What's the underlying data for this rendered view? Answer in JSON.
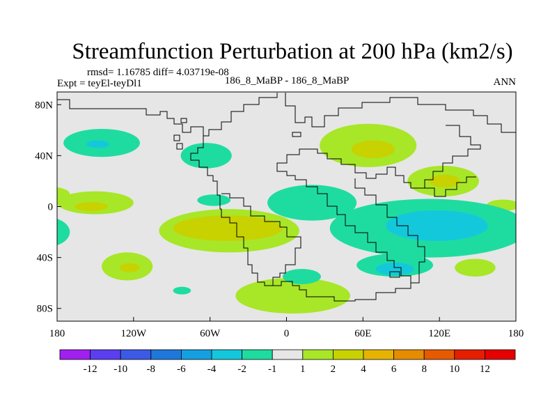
{
  "chart_data": {
    "type": "heatmap",
    "title": "Streamfunction Perturbation at 200 hPa (km2/s)",
    "stats_line": "rmsd= 1.16785 diff= 4.03719e-08",
    "left_label": "Expt = teyEl-teyDl1",
    "center_label": "186_8_MaBP - 186_8_MaBP",
    "right_label": "ANN",
    "x_axis": {
      "range": [
        -180,
        180
      ],
      "ticks": [
        {
          "value": -180,
          "label": "180"
        },
        {
          "value": -120,
          "label": "120W"
        },
        {
          "value": -60,
          "label": "60W"
        },
        {
          "value": 0,
          "label": "0"
        },
        {
          "value": 60,
          "label": "60E"
        },
        {
          "value": 120,
          "label": "120E"
        },
        {
          "value": 180,
          "label": "180"
        }
      ]
    },
    "y_axis": {
      "range": [
        -90,
        90
      ],
      "ticks": [
        {
          "value": 80,
          "label": "80N"
        },
        {
          "value": 40,
          "label": "40N"
        },
        {
          "value": 0,
          "label": "0"
        },
        {
          "value": -40,
          "label": "40S"
        },
        {
          "value": -80,
          "label": "80S"
        }
      ]
    },
    "colorbar": {
      "labels": [
        "-12",
        "-10",
        "-8",
        "-6",
        "-4",
        "-2",
        "-1",
        "1",
        "2",
        "4",
        "6",
        "8",
        "10",
        "12"
      ],
      "colors": [
        "#a020f0",
        "#5a3ef0",
        "#3c5ae6",
        "#1e78dc",
        "#14a0e0",
        "#14c8dc",
        "#1edca0",
        "#e6e6e6",
        "#a8e628",
        "#c8d200",
        "#e6b400",
        "#e68c00",
        "#e65a00",
        "#e61e00",
        "#e60000"
      ]
    },
    "features": [
      {
        "name": "pacific-nw-low-outer",
        "lon": -145,
        "lat": 50,
        "rlon": 30,
        "rlat": 11,
        "level": "-1"
      },
      {
        "name": "pacific-nw-low-inner",
        "lon": -148,
        "lat": 49,
        "rlon": 9,
        "rlat": 3,
        "level": "-2"
      },
      {
        "name": "north-america-low",
        "lon": -63,
        "lat": 40,
        "rlon": 20,
        "rlat": 10,
        "level": "-1"
      },
      {
        "name": "gulf-low",
        "lon": -57,
        "lat": 5,
        "rlon": 13,
        "rlat": 4.5,
        "level": "-1"
      },
      {
        "name": "tropical-pacific-high-outer",
        "lon": -150,
        "lat": 3,
        "rlon": 30,
        "rlat": 9,
        "level": "1"
      },
      {
        "name": "tropical-pacific-high-inner",
        "lon": -153,
        "lat": 0,
        "rlon": 13,
        "rlat": 3.5,
        "level": "2"
      },
      {
        "name": "north-atlantic-high-east",
        "lon": -190,
        "lat": 10,
        "rlon": 20,
        "rlat": 6,
        "level": "1"
      },
      {
        "name": "europe-high-outer",
        "lon": 64,
        "lat": 48,
        "rlon": 38,
        "rlat": 17,
        "level": "1"
      },
      {
        "name": "europe-high-inner",
        "lon": 68,
        "lat": 45,
        "rlon": 17,
        "rlat": 7,
        "level": "2"
      },
      {
        "name": "east-asia-high-outer",
        "lon": 123,
        "lat": 20,
        "rlon": 28,
        "rlat": 12,
        "level": "1"
      },
      {
        "name": "east-asia-high-inner",
        "lon": 124,
        "lat": 20,
        "rlon": 12,
        "rlat": 5,
        "level": "2"
      },
      {
        "name": "north-pacific-high",
        "lon": 170,
        "lat": 1,
        "rlon": 13,
        "rlat": 4.5,
        "level": "1"
      },
      {
        "name": "indian-ocean-low-outer",
        "lon": 112,
        "lat": -17,
        "rlon": 78,
        "rlat": 23,
        "level": "-1"
      },
      {
        "name": "indian-ocean-low-inner",
        "lon": 118,
        "lat": -15,
        "rlon": 40,
        "rlat": 12,
        "level": "-2"
      },
      {
        "name": "atlantic-low-band",
        "lon": 20,
        "lat": 3,
        "rlon": 35,
        "rlat": 14,
        "level": "-1"
      },
      {
        "name": "south-africa-low",
        "lon": 85,
        "lat": -46,
        "rlon": 30,
        "rlat": 9,
        "level": "-1"
      },
      {
        "name": "south-africa-low-inner",
        "lon": 85,
        "lat": -49,
        "rlon": 15,
        "rlat": 5,
        "level": "-2"
      },
      {
        "name": "south-pacific-high-outer",
        "lon": -45,
        "lat": -19,
        "rlon": 55,
        "rlat": 17,
        "level": "1"
      },
      {
        "name": "south-pacific-high-inner",
        "lon": -46,
        "lat": -17,
        "rlon": 43,
        "rlat": 10,
        "level": "2"
      },
      {
        "name": "west-pacific-low",
        "lon": -190,
        "lat": -20,
        "rlon": 20,
        "rlat": 12,
        "level": "-1"
      },
      {
        "name": "south-pacific-high-west",
        "lon": -125,
        "lat": -47,
        "rlon": 20,
        "rlat": 11,
        "level": "1"
      },
      {
        "name": "south-pacific-high-west-inner",
        "lon": -123,
        "lat": -48,
        "rlon": 8,
        "rlat": 3.5,
        "level": "2"
      },
      {
        "name": "southern-ocean-high",
        "lon": 5,
        "lat": -70,
        "rlon": 45,
        "rlat": 14,
        "level": "1"
      },
      {
        "name": "southern-ocean-low",
        "lon": 12,
        "lat": -55,
        "rlon": 15,
        "rlat": 6,
        "level": "-1"
      },
      {
        "name": "australia-south-high",
        "lon": 148,
        "lat": -48,
        "rlon": 16,
        "rlat": 7,
        "level": "1"
      },
      {
        "name": "antarctic-low-spot",
        "lon": -82,
        "lat": -66,
        "rlon": 7,
        "rlat": 3,
        "level": "-1"
      }
    ]
  }
}
